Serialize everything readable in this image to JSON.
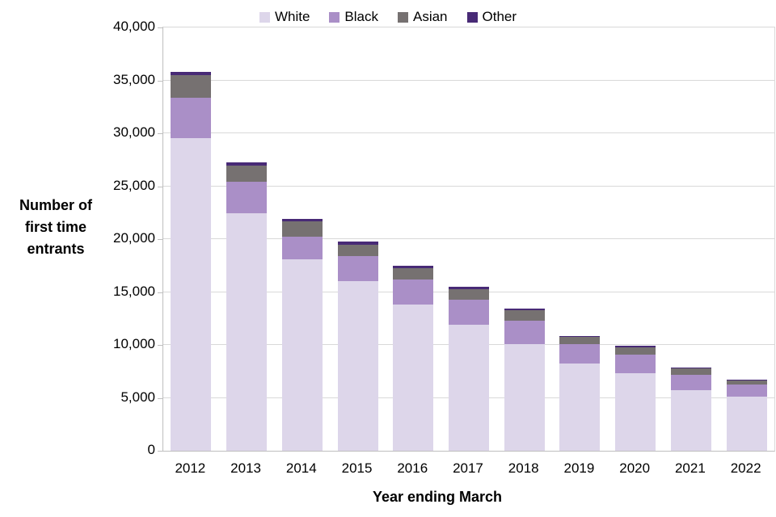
{
  "chart_data": {
    "type": "bar",
    "stacked": true,
    "title": "",
    "xlabel": "Year ending March",
    "ylabel": "Number of first time entrants",
    "ylim": [
      0,
      40000
    ],
    "ytick_step": 5000,
    "grid": true,
    "legend_position": "top",
    "categories": [
      "2012",
      "2013",
      "2014",
      "2015",
      "2016",
      "2017",
      "2018",
      "2019",
      "2020",
      "2021",
      "2022"
    ],
    "series": [
      {
        "name": "White",
        "color": "#DDD6EA",
        "values": [
          29550,
          22450,
          18100,
          16050,
          13800,
          11900,
          10050,
          8250,
          7350,
          5700,
          5100
        ]
      },
      {
        "name": "Black",
        "color": "#AA8FC7",
        "values": [
          3800,
          2950,
          2150,
          2350,
          2350,
          2350,
          2250,
          1800,
          1700,
          1450,
          1150
        ]
      },
      {
        "name": "Asian",
        "color": "#767171",
        "values": [
          2150,
          1550,
          1400,
          1100,
          1100,
          1050,
          1000,
          700,
          750,
          600,
          400
        ]
      },
      {
        "name": "Other",
        "color": "#482A76",
        "values": [
          300,
          300,
          250,
          300,
          250,
          200,
          100,
          100,
          100,
          100,
          100
        ]
      }
    ],
    "totals": [
      35800,
      27250,
      21900,
      19800,
      17500,
      15500,
      13400,
      10850,
      9900,
      7850,
      6750
    ],
    "ytick_labels": [
      "0",
      "5,000",
      "10,000",
      "15,000",
      "20,000",
      "25,000",
      "30,000",
      "35,000",
      "40,000"
    ],
    "colors": {
      "gridline": "#D9D9D9",
      "axis_line": "#BFBFBF",
      "text": "#000000"
    }
  }
}
